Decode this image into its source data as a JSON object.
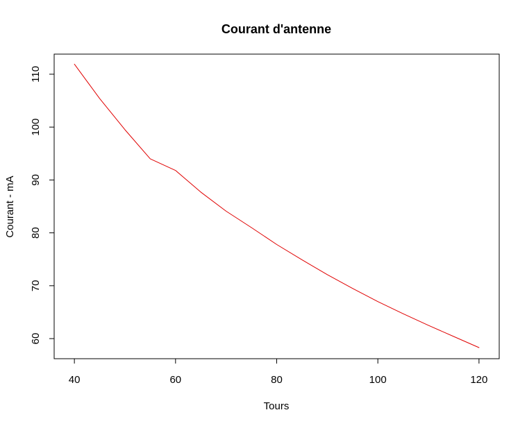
{
  "chart_data": {
    "type": "line",
    "title": "Courant d'antenne",
    "xlabel": "Tours",
    "ylabel": "Courant - mA",
    "xlim": [
      36,
      124
    ],
    "ylim": [
      56.2,
      113.8
    ],
    "x_ticks": [
      40,
      60,
      80,
      100,
      120
    ],
    "y_ticks": [
      60,
      70,
      80,
      90,
      100,
      110
    ],
    "grid": false,
    "legend": "none",
    "series": [
      {
        "color": "#e00000",
        "x": [
          40,
          45,
          50,
          55,
          60,
          65,
          70,
          75,
          80,
          85,
          90,
          95,
          100,
          105,
          110,
          115,
          120
        ],
        "y": [
          111.9,
          105.4,
          99.5,
          94.0,
          91.8,
          87.7,
          84.1,
          81.0,
          77.8,
          74.9,
          72.1,
          69.5,
          67.0,
          64.7,
          62.5,
          60.4,
          58.3
        ]
      }
    ]
  }
}
